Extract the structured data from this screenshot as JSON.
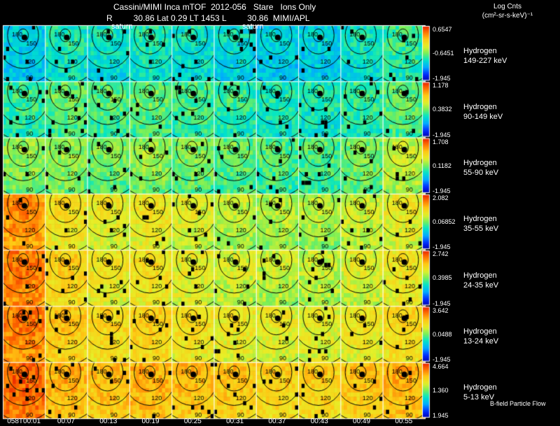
{
  "header": {
    "line1": "Cassini/MIMI Inca mTOF  2012-056   Stare   Ions Only",
    "line2": "R         30.86 Lat 0.29 LT 1453 L         30.86  MIMI/APL",
    "saturn_left": "saturn",
    "saturn_right": "saturn"
  },
  "colorbar_title": {
    "line1": "Log Cnts",
    "line2": "(cm²-sr-s-keV)⁻¹"
  },
  "footer": "B-field Particle Flow",
  "chart_data": {
    "type": "heatmap",
    "time_labels": [
      "058T00:01",
      "00:07",
      "00:13",
      "00:19",
      "00:25",
      "00:31",
      "00:37",
      "00:43",
      "00:49",
      "00:55"
    ],
    "contour_labels": [
      "180",
      "150",
      "120",
      "90"
    ],
    "rows": [
      {
        "species": "Hydrogen",
        "energy": "149-227 keV",
        "max": "0.6547",
        "mid": "-0.6451",
        "min": "-1.945",
        "level": [
          0.35,
          0.42,
          0.4,
          0.42,
          0.4,
          0.38,
          0.35,
          0.35,
          0.4,
          0.45
        ]
      },
      {
        "species": "Hydrogen",
        "energy": "90-149 keV",
        "max": "1.178",
        "mid": "0.3832",
        "min": "-1.945",
        "level": [
          0.45,
          0.5,
          0.48,
          0.5,
          0.47,
          0.45,
          0.42,
          0.42,
          0.45,
          0.5
        ]
      },
      {
        "species": "Hydrogen",
        "energy": "55-90 keV",
        "max": "1.708",
        "mid": "0.1182",
        "min": "-1.945",
        "level": [
          0.55,
          0.55,
          0.52,
          0.55,
          0.52,
          0.5,
          0.48,
          0.48,
          0.52,
          0.6
        ]
      },
      {
        "species": "Hydrogen",
        "energy": "35-55 keV",
        "max": "2.082",
        "mid": "0.06852",
        "min": "-1.945",
        "level": [
          0.8,
          0.7,
          0.66,
          0.68,
          0.64,
          0.6,
          0.58,
          0.58,
          0.62,
          0.66
        ]
      },
      {
        "species": "Hydrogen",
        "energy": "24-35 keV",
        "max": "2.742",
        "mid": "0.3985",
        "min": "-1.945",
        "level": [
          0.82,
          0.74,
          0.68,
          0.7,
          0.66,
          0.62,
          0.6,
          0.6,
          0.64,
          0.68
        ]
      },
      {
        "species": "Hydrogen",
        "energy": "13-24 keV",
        "max": "3.642",
        "mid": "0.0488",
        "min": "-1.945",
        "level": [
          0.82,
          0.76,
          0.72,
          0.74,
          0.7,
          0.68,
          0.66,
          0.66,
          0.68,
          0.72
        ]
      },
      {
        "species": "Hydrogen",
        "energy": "5-13 keV",
        "max": "4.664",
        "mid": "1.360",
        "min": "1.945",
        "level": [
          0.85,
          0.8,
          0.78,
          0.8,
          0.78,
          0.76,
          0.74,
          0.74,
          0.76,
          0.8
        ]
      }
    ]
  }
}
